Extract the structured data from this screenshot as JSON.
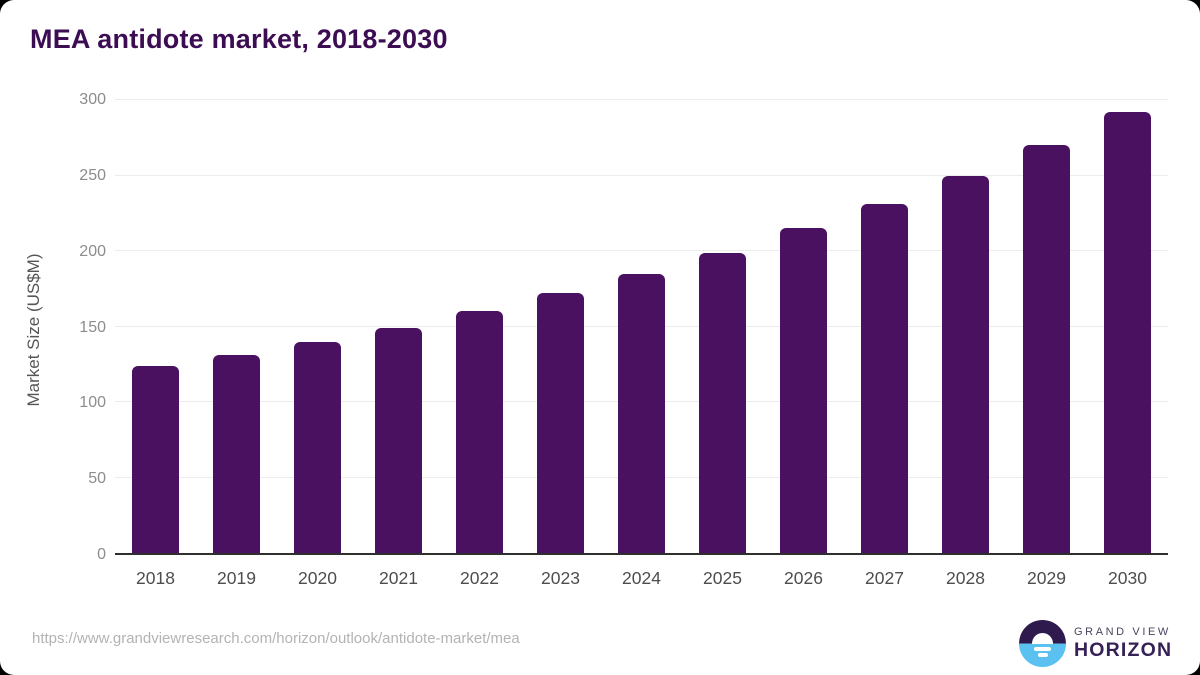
{
  "title": "MEA antidote market, 2018-2030",
  "chart_data": {
    "type": "bar",
    "title": "MEA antidote market, 2018-2030",
    "categories": [
      "2018",
      "2019",
      "2020",
      "2021",
      "2022",
      "2023",
      "2024",
      "2025",
      "2026",
      "2027",
      "2028",
      "2029",
      "2030"
    ],
    "values": [
      124,
      131,
      140,
      149,
      160,
      172,
      185,
      199,
      215,
      231,
      250,
      270,
      292
    ],
    "xlabel": "",
    "ylabel": "Market Size (US$M)",
    "ylim": [
      0,
      300
    ],
    "yticks": [
      0,
      50,
      100,
      150,
      200,
      250,
      300
    ],
    "grid": true,
    "legend": false,
    "bar_color": "#4a1161"
  },
  "footer": {
    "source_url": "https://www.grandviewresearch.com/horizon/outlook/antidote-market/mea",
    "logo": {
      "brand_line1": "GRAND VIEW",
      "brand_line2": "HORIZON"
    }
  },
  "colors": {
    "title": "#3d0d54",
    "bar": "#4a1161",
    "gridline": "#ececec",
    "axis_line": "#2f2f2f",
    "y_tick_label": "#8c8c8c",
    "x_tick_label": "#4d4d4d",
    "axis_title": "#555555",
    "source_url": "#b3b3b3",
    "logo_circle_top": "#2e1a4d",
    "logo_circle_bottom": "#5ac1f0",
    "logo_text": "#372257"
  }
}
